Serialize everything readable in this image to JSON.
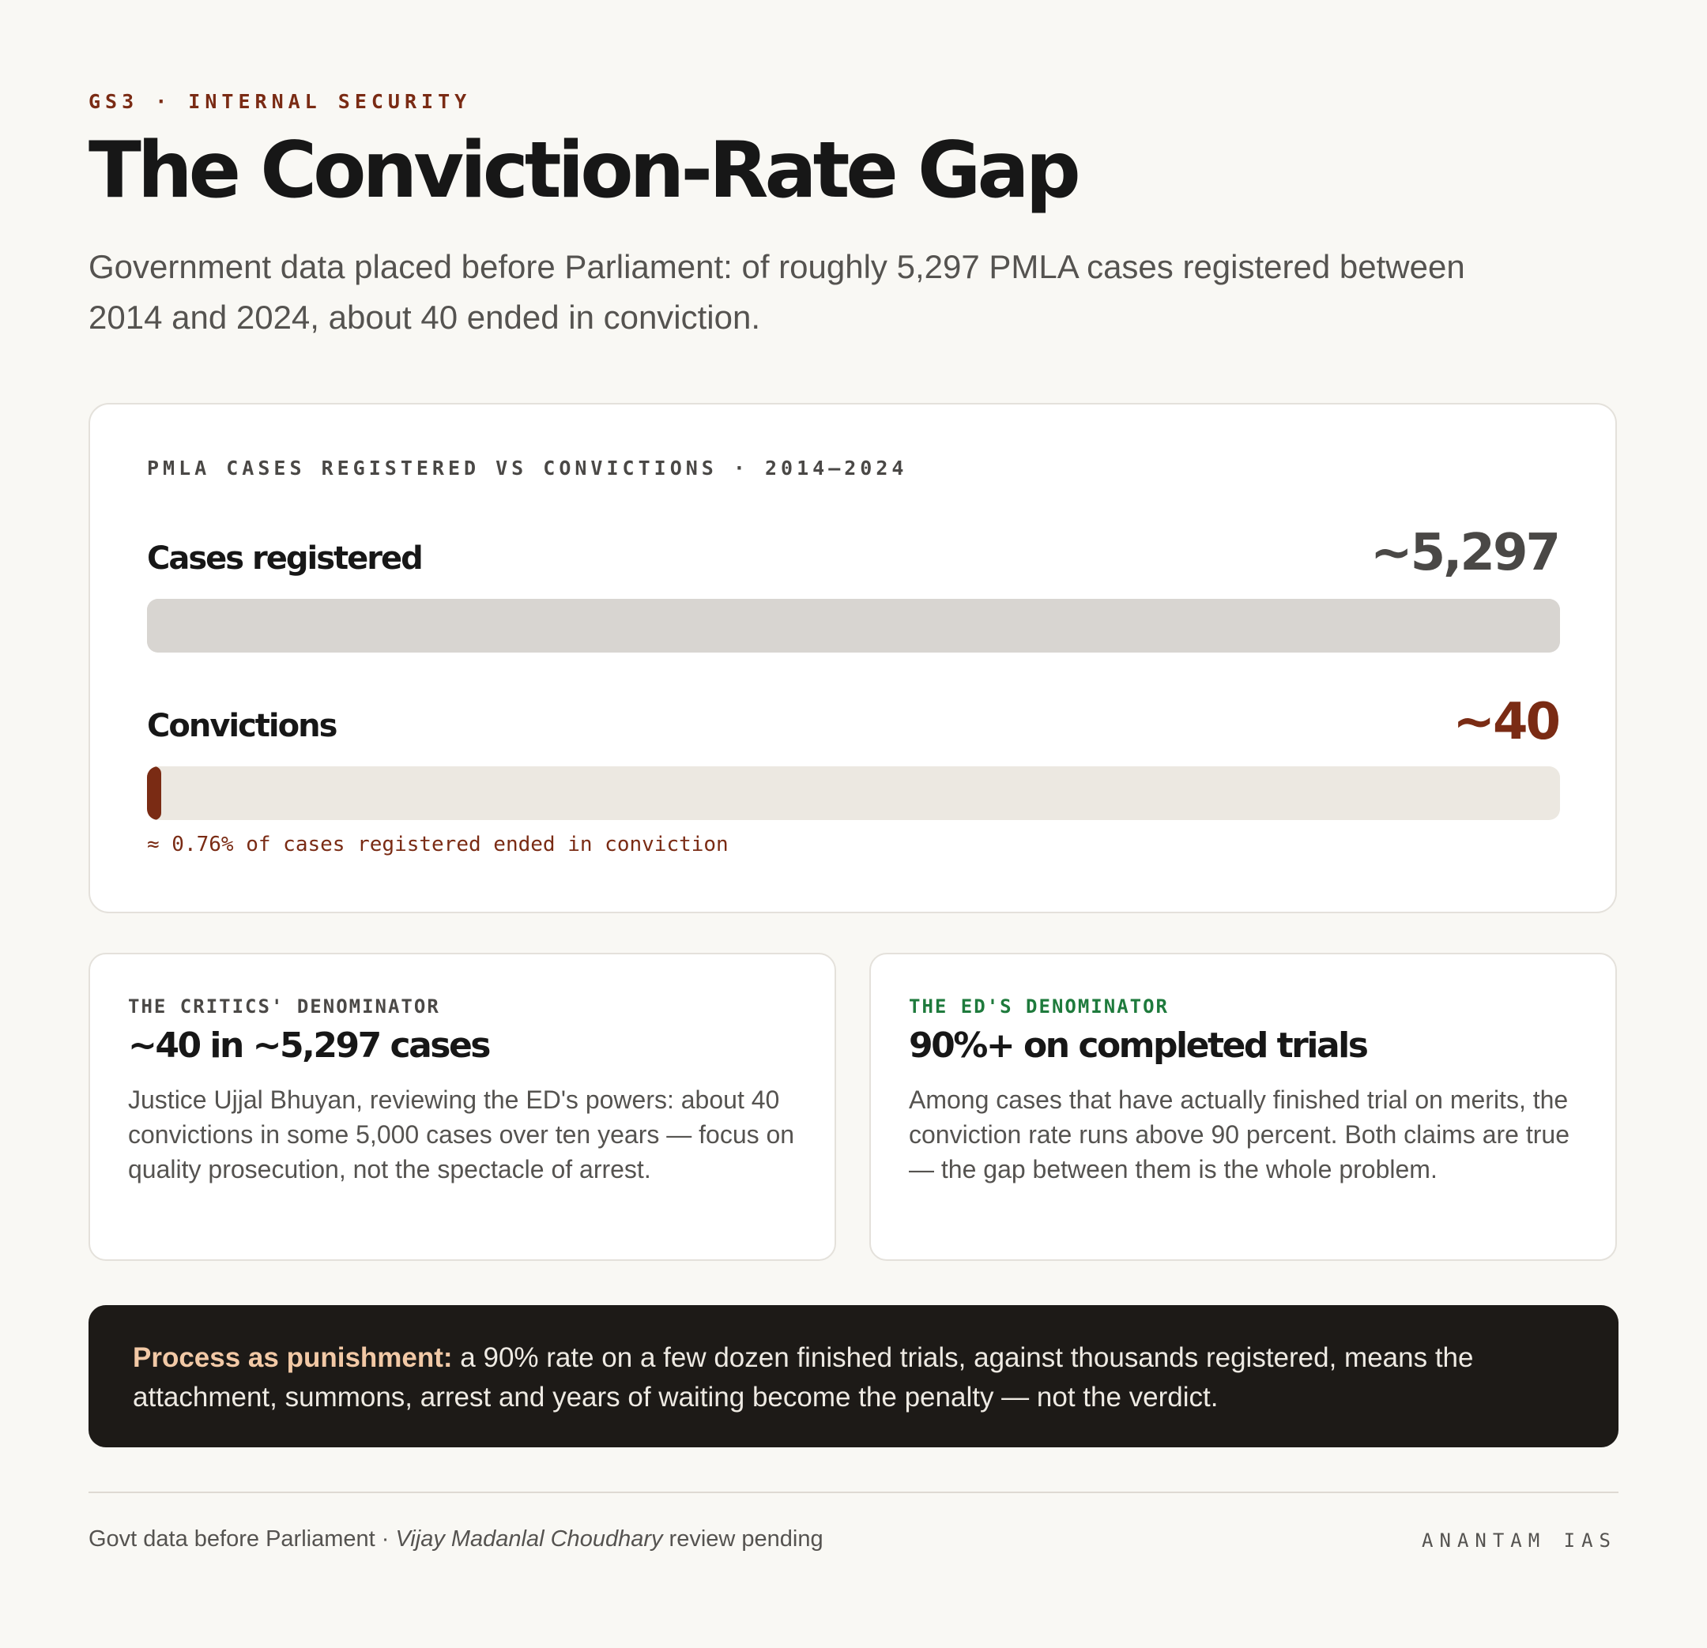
{
  "header": {
    "kicker": "GS3 · INTERNAL SECURITY",
    "title": "The Conviction-Rate Gap",
    "subtitle": "Government data placed before Parliament: of roughly 5,297 PMLA cases registered between 2014 and 2024, about 40 ended in conviction."
  },
  "chart_data": {
    "type": "bar",
    "orientation": "horizontal",
    "title": "PMLA CASES REGISTERED VS CONVICTIONS · 2014–2024",
    "categories": [
      "Cases registered",
      "Convictions"
    ],
    "values": [
      5297,
      40
    ],
    "value_labels": [
      "~5,297",
      "~40"
    ],
    "xlim": [
      0,
      5297
    ],
    "grid": false,
    "legend": "none",
    "annotation": "≈ 0.76% of cases registered ended in conviction",
    "colors": {
      "cases_fill": "#d8d5d1",
      "convictions_fill": "#7a2b14",
      "convictions_track": "#ece8e1",
      "cases_value": "#4a4846",
      "convictions_value": "#7a2b14"
    }
  },
  "cards": [
    {
      "kicker": "THE CRITICS' DENOMINATOR",
      "kicker_color": "#4a4846",
      "title": "~40 in ~5,297 cases",
      "body": "Justice Ujjal Bhuyan, reviewing the ED's powers: about 40 convictions in some 5,000 cases over ten years — focus on quality prosecution, not the spectacle of arrest."
    },
    {
      "kicker": "THE ED'S DENOMINATOR",
      "kicker_color": "#1e7a3c",
      "title": "90%+ on completed trials",
      "body": "Among cases that have actually finished trial on merits, the conviction rate runs above 90 percent. Both claims are true — the gap between them is the whole problem."
    }
  ],
  "callout": {
    "lead": "Process as punishment:",
    "text": " a 90% rate on a few dozen finished trials, against thousands registered, means the attachment, summons, arrest and years of waiting become the penalty — not the verdict."
  },
  "footer": {
    "source_prefix": "Govt data before Parliament · ",
    "case_name": "Vijay Madanlal Choudhary",
    "source_suffix": " review pending",
    "brand": "ANANTAM IAS"
  }
}
